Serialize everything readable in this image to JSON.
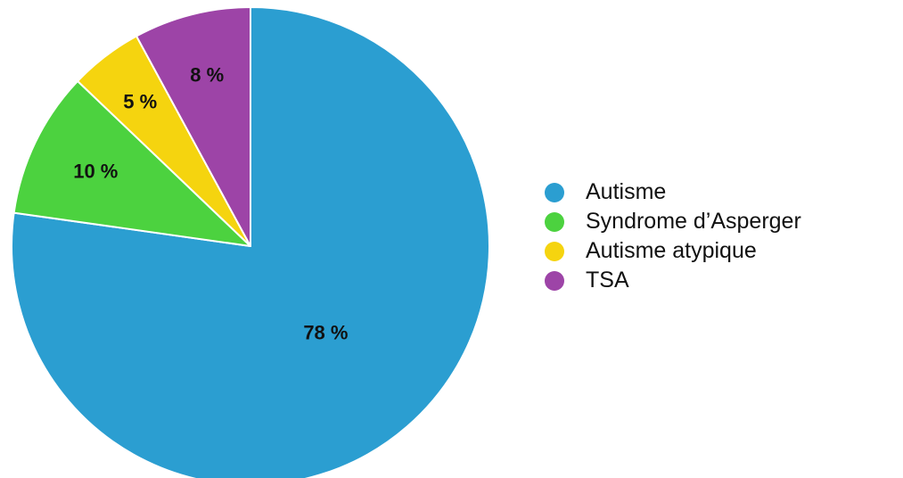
{
  "chart_data": {
    "type": "pie",
    "categories": [
      "Autisme",
      "Syndrome d’Asperger",
      "Autisme atypique",
      "TSA"
    ],
    "values": [
      78,
      10,
      5,
      8
    ],
    "data_labels": [
      "78 %",
      "10 %",
      "5 %",
      "8 %"
    ],
    "colors": [
      "#2b9ed1",
      "#4cd23f",
      "#f5d40f",
      "#9d44a7"
    ],
    "start": "top (12 o'clock)",
    "direction": "clockwise",
    "legend_position": "right",
    "title": ""
  }
}
